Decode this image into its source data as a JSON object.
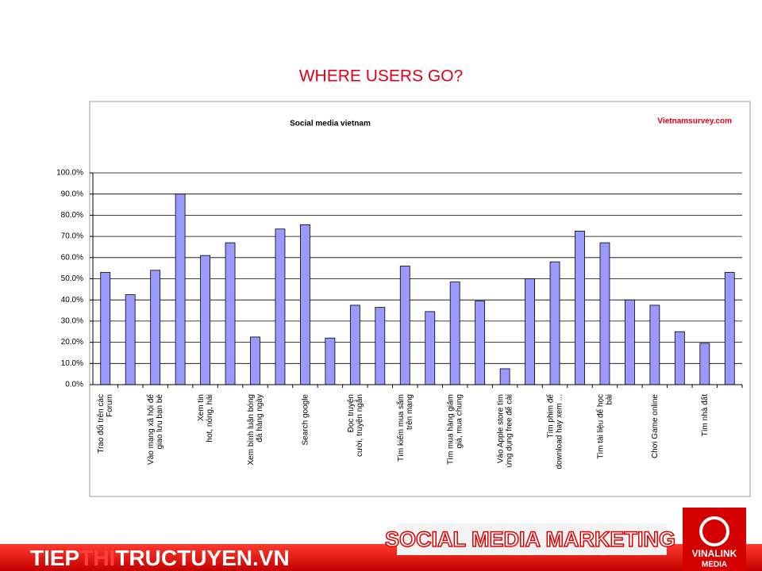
{
  "slide_title": "WHERE USERS GO?",
  "chart_data": {
    "type": "bar",
    "title": "Social media vietnam",
    "source": "Vietnamsurvey.com",
    "categories": [
      "Trao đổi trên các\nForum",
      null,
      "Vào mạng xã hội để\ngiao lưu bạn bè",
      null,
      "Xem tin\nhot, nóng, hài",
      null,
      "Xem bình luận bóng\nđá hàng ngày",
      null,
      "Search google",
      null,
      "Đọc truyện\ncười, truyện ngắn",
      null,
      "Tìm kiếm mua sắm\ntrên mạng",
      null,
      "Tìm mua hàng giảm\ngiá, mua chung",
      null,
      "Vào Apple store tìm\nứng dụng free để cài",
      null,
      "Tìm phim để\ndownload hay xem ...",
      null,
      "Tìm tài liệu để học\nbài",
      null,
      "Chơi Game online",
      null,
      "Tìm nhà đất",
      null
    ],
    "values": [
      53,
      42.5,
      54,
      90,
      61,
      67,
      22.5,
      73.5,
      75.5,
      22,
      37.5,
      36.5,
      56,
      34.5,
      48.5,
      39.5,
      7.5,
      50,
      58,
      72.5,
      67,
      40,
      37.5,
      25,
      19.5,
      53
    ],
    "color": "#9999ff",
    "ylim": [
      0,
      100
    ],
    "yticks": [
      {
        "value": 0,
        "label": "0.0%"
      },
      {
        "value": 10,
        "label": "10.0%"
      },
      {
        "value": 20,
        "label": "20.0%"
      },
      {
        "value": 30,
        "label": "30.0%"
      },
      {
        "value": 40,
        "label": "40.0%"
      },
      {
        "value": 50,
        "label": "50.0%"
      },
      {
        "value": 60,
        "label": "60.0%"
      },
      {
        "value": 70,
        "label": "70.0%"
      },
      {
        "value": 80,
        "label": "80.0%"
      },
      {
        "value": 90,
        "label": "90.0%"
      },
      {
        "value": 100,
        "label": "100.0%"
      }
    ],
    "grid": true
  },
  "footer": {
    "banner": "SOCIAL MEDIA MARKETING",
    "site": [
      "TIEP",
      "THI",
      "TRUCTUYEN.VN"
    ],
    "logo": [
      "VINALINK",
      "MEDIA"
    ]
  }
}
